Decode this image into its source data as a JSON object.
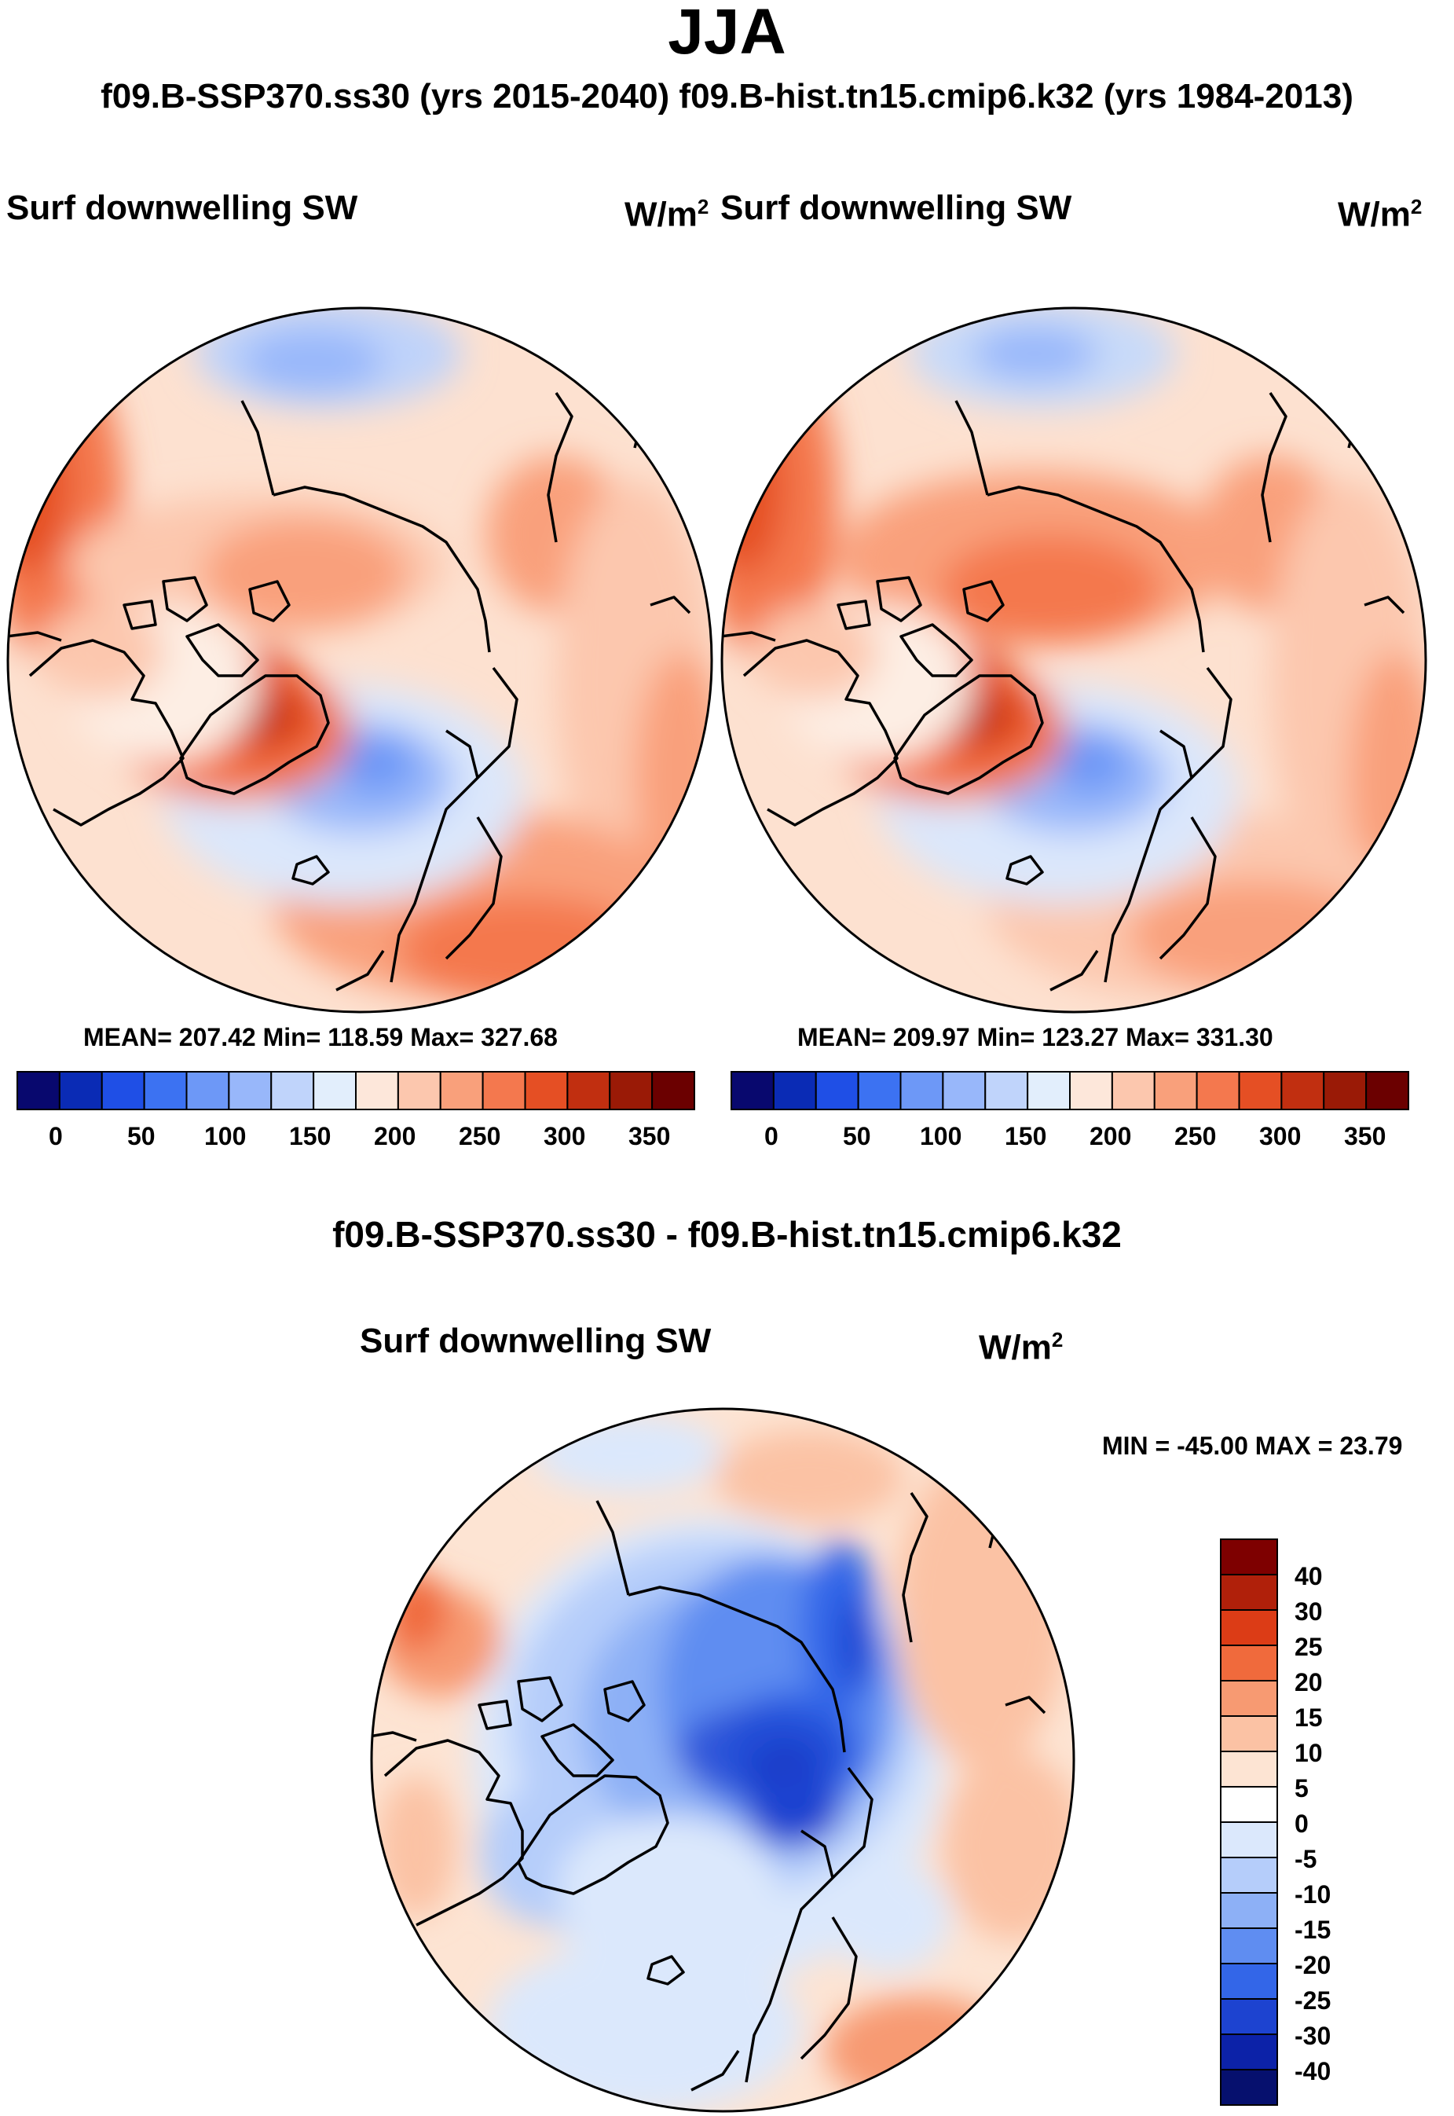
{
  "header": {
    "title": "JJA",
    "subtitle": "f09.B-SSP370.ss30 (yrs 2015-2040)  f09.B-hist.tn15.cmip6.k32 (yrs 1984-2013)"
  },
  "panel_left": {
    "variable": "Surf downwelling SW",
    "units_base": "W/m",
    "units_exp": "2",
    "stats": "MEAN= 207.42  Min= 118.59  Max= 327.68"
  },
  "panel_right": {
    "variable": "Surf downwelling SW",
    "units_base": "W/m",
    "units_exp": "2",
    "stats": "MEAN= 209.97  Min= 123.27  Max= 331.30"
  },
  "panel_diff": {
    "title": "f09.B-SSP370.ss30 - f09.B-hist.tn15.cmip6.k32",
    "variable": "Surf downwelling SW",
    "units_base": "W/m",
    "units_exp": "2",
    "minmax": "MIN = -45.00 MAX =  23.79"
  },
  "chart_data": [
    {
      "type": "heatmap",
      "name": "left-map",
      "title": "Surf downwelling SW",
      "units": "W/m2",
      "mean": 207.42,
      "min": 118.59,
      "max": 327.68,
      "colorbar": {
        "orientation": "horizontal",
        "tick_labels": [
          "0",
          "50",
          "100",
          "150",
          "200",
          "250",
          "300",
          "350"
        ],
        "colors": [
          "#08086e",
          "#0a2bb5",
          "#1f4fe6",
          "#3c72f2",
          "#6d98f7",
          "#98b7fa",
          "#c0d4fb",
          "#e2eefc",
          "#fde7da",
          "#fcc7ae",
          "#f9a07b",
          "#f4784e",
          "#e54f24",
          "#c12f10",
          "#9a1a06",
          "#6b0000"
        ]
      }
    },
    {
      "type": "heatmap",
      "name": "right-map",
      "title": "Surf downwelling SW",
      "units": "W/m2",
      "mean": 209.97,
      "min": 123.27,
      "max": 331.3,
      "colorbar": {
        "orientation": "horizontal",
        "tick_labels": [
          "0",
          "50",
          "100",
          "150",
          "200",
          "250",
          "300",
          "350"
        ],
        "colors": [
          "#08086e",
          "#0a2bb5",
          "#1f4fe6",
          "#3c72f2",
          "#6d98f7",
          "#98b7fa",
          "#c0d4fb",
          "#e2eefc",
          "#fde7da",
          "#fcc7ae",
          "#f9a07b",
          "#f4784e",
          "#e54f24",
          "#c12f10",
          "#9a1a06",
          "#6b0000"
        ]
      }
    },
    {
      "type": "heatmap",
      "name": "difference-map",
      "title": "Surf downwelling SW",
      "units": "W/m2",
      "min": -45.0,
      "max": 23.79,
      "colorbar": {
        "orientation": "vertical",
        "tick_labels": [
          "40",
          "30",
          "25",
          "20",
          "15",
          "10",
          "5",
          "0",
          "-5",
          "-10",
          "-15",
          "-20",
          "-25",
          "-30",
          "-40"
        ],
        "colors_top_to_bottom": [
          "#7e0000",
          "#b0200a",
          "#dc3c16",
          "#f06a3c",
          "#f79a72",
          "#fbc2a4",
          "#fde4d3",
          "#ffffff",
          "#dbe8fc",
          "#b5cdfa",
          "#8db0f6",
          "#5f8df1",
          "#3366e8",
          "#1d43d0",
          "#0c22a8",
          "#06106e"
        ]
      }
    }
  ]
}
